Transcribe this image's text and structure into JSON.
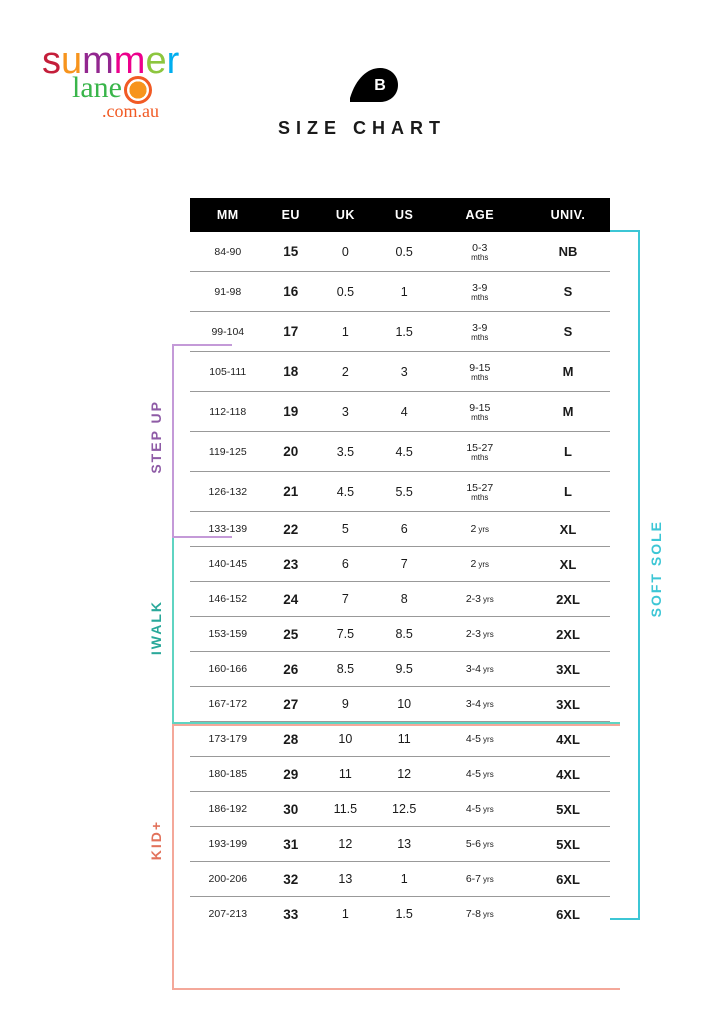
{
  "logo": {
    "line1_chars": [
      "s",
      "u",
      "m",
      "m",
      "e",
      "r"
    ],
    "line2": "lane",
    "line3": ".com.au"
  },
  "title": "SIZE CHART",
  "table": {
    "columns": [
      "MM",
      "EU",
      "UK",
      "US",
      "AGE",
      "UNIV."
    ],
    "rows": [
      {
        "mm": "84-90",
        "eu": "15",
        "uk": "0",
        "us": "0.5",
        "age": "0-3",
        "age_unit": "mths",
        "univ": "NB"
      },
      {
        "mm": "91-98",
        "eu": "16",
        "uk": "0.5",
        "us": "1",
        "age": "3-9",
        "age_unit": "mths",
        "univ": "S"
      },
      {
        "mm": "99-104",
        "eu": "17",
        "uk": "1",
        "us": "1.5",
        "age": "3-9",
        "age_unit": "mths",
        "univ": "S"
      },
      {
        "mm": "105-111",
        "eu": "18",
        "uk": "2",
        "us": "3",
        "age": "9-15",
        "age_unit": "mths",
        "univ": "M"
      },
      {
        "mm": "112-118",
        "eu": "19",
        "uk": "3",
        "us": "4",
        "age": "9-15",
        "age_unit": "mths",
        "univ": "M"
      },
      {
        "mm": "119-125",
        "eu": "20",
        "uk": "3.5",
        "us": "4.5",
        "age": "15-27",
        "age_unit": "mths",
        "univ": "L"
      },
      {
        "mm": "126-132",
        "eu": "21",
        "uk": "4.5",
        "us": "5.5",
        "age": "15-27",
        "age_unit": "mths",
        "univ": "L"
      },
      {
        "mm": "133-139",
        "eu": "22",
        "uk": "5",
        "us": "6",
        "age": "2",
        "age_unit": "yrs",
        "univ": "XL",
        "inline": true
      },
      {
        "mm": "140-145",
        "eu": "23",
        "uk": "6",
        "us": "7",
        "age": "2",
        "age_unit": "yrs",
        "univ": "XL",
        "inline": true
      },
      {
        "mm": "146-152",
        "eu": "24",
        "uk": "7",
        "us": "8",
        "age": "2-3",
        "age_unit": "yrs",
        "univ": "2XL",
        "inline": true
      },
      {
        "mm": "153-159",
        "eu": "25",
        "uk": "7.5",
        "us": "8.5",
        "age": "2-3",
        "age_unit": "yrs",
        "univ": "2XL",
        "inline": true
      },
      {
        "mm": "160-166",
        "eu": "26",
        "uk": "8.5",
        "us": "9.5",
        "age": "3-4",
        "age_unit": "yrs",
        "univ": "3XL",
        "inline": true
      },
      {
        "mm": "167-172",
        "eu": "27",
        "uk": "9",
        "us": "10",
        "age": "3-4",
        "age_unit": "yrs",
        "univ": "3XL",
        "inline": true
      },
      {
        "mm": "173-179",
        "eu": "28",
        "uk": "10",
        "us": "11",
        "age": "4-5",
        "age_unit": "yrs",
        "univ": "4XL",
        "inline": true
      },
      {
        "mm": "180-185",
        "eu": "29",
        "uk": "11",
        "us": "12",
        "age": "4-5",
        "age_unit": "yrs",
        "univ": "4XL",
        "inline": true
      },
      {
        "mm": "186-192",
        "eu": "30",
        "uk": "11.5",
        "us": "12.5",
        "age": "4-5",
        "age_unit": "yrs",
        "univ": "5XL",
        "inline": true
      },
      {
        "mm": "193-199",
        "eu": "31",
        "uk": "12",
        "us": "13",
        "age": "5-6",
        "age_unit": "yrs",
        "univ": "5XL",
        "inline": true
      },
      {
        "mm": "200-206",
        "eu": "32",
        "uk": "13",
        "us": "1",
        "age": "6-7",
        "age_unit": "yrs",
        "univ": "6XL",
        "inline": true
      },
      {
        "mm": "207-213",
        "eu": "33",
        "uk": "1",
        "us": "1.5",
        "age": "7-8",
        "age_unit": "yrs",
        "univ": "6XL",
        "inline": true
      }
    ]
  },
  "brackets": {
    "soft_sole": {
      "label": "SOFT SOLE",
      "color": "#3cc6d5"
    },
    "step_up": {
      "label": "STEP UP",
      "color": "#8e5ba6"
    },
    "iwalk": {
      "label": "IWALK",
      "color": "#2aa89a"
    },
    "kid": {
      "label": "KID+",
      "color": "#e2725b"
    }
  },
  "colors": {
    "header_bg": "#000000",
    "header_fg": "#ffffff",
    "row_border": "#999999",
    "logo": {
      "s": "#c41e3a",
      "u": "#f7941d",
      "m1": "#92278f",
      "m2": "#ec008c",
      "e": "#8dc63f",
      "r": "#00aeef",
      "lane": "#39b54a",
      "domain": "#f15a24"
    }
  }
}
